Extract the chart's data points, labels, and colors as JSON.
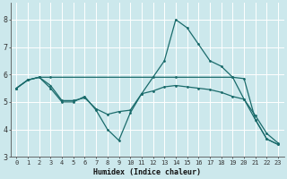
{
  "xlabel": "Humidex (Indice chaleur)",
  "bg_color": "#cce8ec",
  "grid_color": "#ffffff",
  "line_color": "#1a6b6b",
  "xlim": [
    -0.5,
    23.5
  ],
  "ylim": [
    3,
    8.6
  ],
  "xticks": [
    0,
    1,
    2,
    3,
    4,
    5,
    6,
    7,
    8,
    9,
    10,
    11,
    12,
    13,
    14,
    15,
    16,
    17,
    18,
    19,
    20,
    21,
    22,
    23
  ],
  "yticks": [
    3,
    4,
    5,
    6,
    7,
    8
  ],
  "line1_x": [
    0,
    1,
    2,
    3,
    4,
    5,
    6,
    7,
    8,
    9,
    10,
    11,
    12,
    13,
    14,
    15,
    16,
    17,
    18,
    19,
    20,
    21,
    22,
    23
  ],
  "line1_y": [
    5.5,
    5.8,
    5.9,
    5.5,
    5.0,
    5.0,
    5.2,
    4.7,
    4.0,
    3.6,
    4.6,
    5.3,
    5.9,
    6.5,
    8.0,
    7.7,
    7.1,
    6.5,
    6.3,
    5.9,
    5.1,
    4.35,
    3.65,
    3.45
  ],
  "line2_x": [
    0,
    1,
    2,
    3,
    14,
    19,
    20,
    21,
    22,
    23
  ],
  "line2_y": [
    5.5,
    5.8,
    5.9,
    5.9,
    5.9,
    5.9,
    5.85,
    4.35,
    3.65,
    3.45
  ],
  "line3_x": [
    0,
    1,
    2,
    3,
    4,
    5,
    6,
    7,
    8,
    9,
    10,
    11,
    12,
    13,
    14,
    15,
    16,
    17,
    18,
    19,
    20,
    21,
    22,
    23
  ],
  "line3_y": [
    5.5,
    5.8,
    5.9,
    5.6,
    5.05,
    5.05,
    5.15,
    4.75,
    4.55,
    4.65,
    4.7,
    5.3,
    5.4,
    5.55,
    5.6,
    5.55,
    5.5,
    5.45,
    5.35,
    5.2,
    5.1,
    4.5,
    3.85,
    3.5
  ]
}
